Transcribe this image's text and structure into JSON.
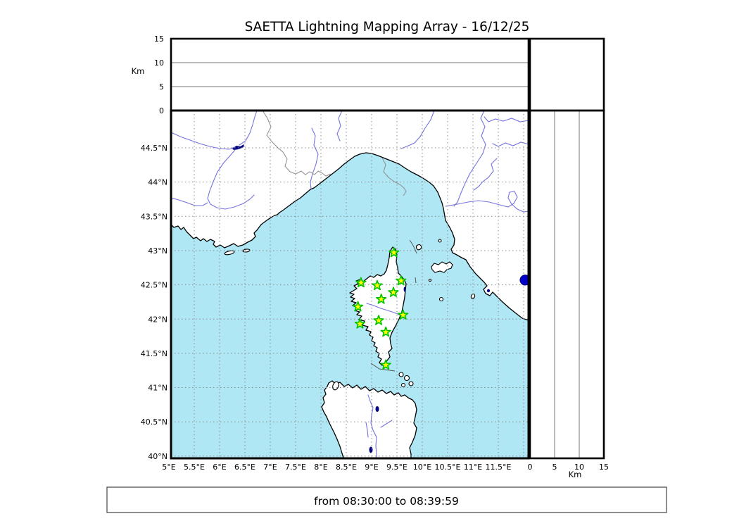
{
  "title": "SAETTA Lightning Mapping Array - 16/12/25",
  "caption": "from 08:30:00 to 08:39:59",
  "colors": {
    "sea": "#b0e7f4",
    "land": "#ffffff",
    "coast": "#000000",
    "river": "#7473de",
    "border_line": "#8c8c8c",
    "grid": "#8a8a8a",
    "panel_grid": "#757575",
    "station_fill": "#ffff00",
    "station_edge": "#00c300",
    "event_fill": "#0000cd",
    "lake": "#000080",
    "frame": "#000000"
  },
  "axes": {
    "lon": {
      "tick_values": [
        5,
        5.5,
        6,
        6.5,
        7,
        7.5,
        8,
        8.5,
        9,
        9.5,
        10,
        10.5,
        11,
        11.5
      ],
      "tick_labels": [
        "5°E",
        "5.5°E",
        "6°E",
        "6.5°E",
        "7°E",
        "7.5°E",
        "8°E",
        "8.5°E",
        "9°E",
        "9.5°E",
        "10°E",
        "10.5°E",
        "11°E",
        "11.5°E"
      ],
      "grid_values": [
        5.5,
        6,
        6.5,
        7,
        7.5,
        8,
        8.5,
        9,
        9.5,
        10,
        10.5,
        11,
        11.5,
        12
      ]
    },
    "lat": {
      "tick_values": [
        44.5,
        44,
        43.5,
        43,
        42.5,
        42,
        41.5,
        41,
        40.5,
        40
      ],
      "tick_labels": [
        "44.5°N",
        "44°N",
        "43.5°N",
        "43°N",
        "42.5°N",
        "42°N",
        "41.5°N",
        "41°N",
        "40.5°N",
        "40°N"
      ]
    },
    "alt_top": {
      "label": "Km",
      "tick_values": [
        0,
        5,
        10,
        15
      ],
      "tick_labels": [
        "0",
        "5",
        "10",
        "15"
      ],
      "grid_values": [
        5,
        10
      ]
    },
    "alt_right": {
      "label": "Km",
      "tick_values": [
        0,
        5,
        10,
        15
      ],
      "tick_labels": [
        "0",
        "5",
        "10",
        "15"
      ],
      "grid_values": [
        5,
        10
      ]
    }
  },
  "chart_data": {
    "type": "map-scatter",
    "title": "SAETTA Lightning Mapping Array - 16/12/25",
    "map_extent": {
      "lon_min": 5.0,
      "lon_max": 12.1,
      "lat_min": 39.97,
      "lat_max": 45.05
    },
    "altitude_km_range": [
      0,
      15
    ],
    "altitude_gridlines_km": [
      5,
      10
    ],
    "stations_lon_lat": [
      [
        9.44,
        42.97
      ],
      [
        8.79,
        42.53
      ],
      [
        9.11,
        42.49
      ],
      [
        9.58,
        42.56
      ],
      [
        9.43,
        42.39
      ],
      [
        9.19,
        42.29
      ],
      [
        8.73,
        42.18
      ],
      [
        9.62,
        42.06
      ],
      [
        9.14,
        41.98
      ],
      [
        8.77,
        41.93
      ],
      [
        9.28,
        41.81
      ],
      [
        9.28,
        41.33
      ]
    ],
    "events_lon_lat": [
      [
        12.03,
        42.57
      ]
    ],
    "time_range": {
      "from": "08:30:00",
      "to": "08:39:59"
    }
  }
}
